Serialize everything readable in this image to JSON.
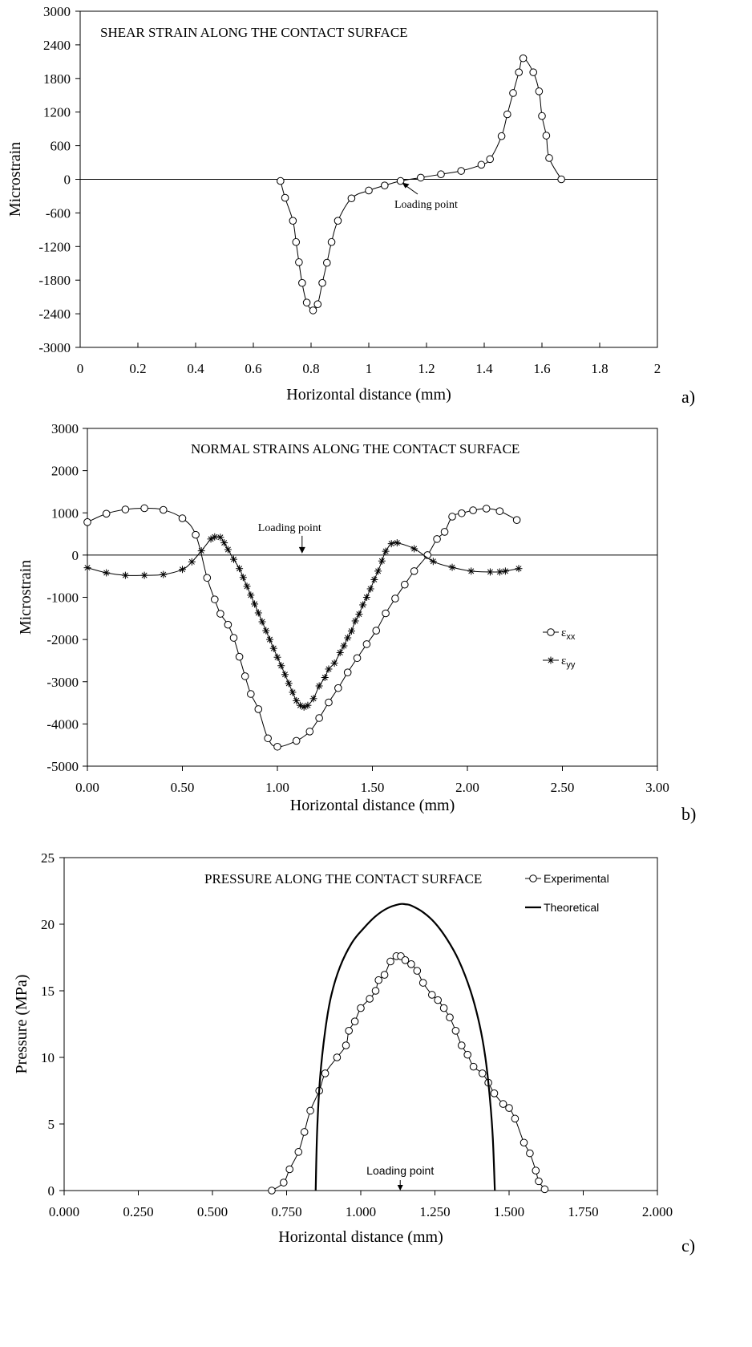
{
  "chart_data": [
    {
      "id": "a",
      "type": "line",
      "panel_label": "a)",
      "title": "SHEAR STRAIN ALONG THE CONTACT SURFACE",
      "xlabel": "Horizontal distance (mm)",
      "ylabel": "Microstrain",
      "xlim": [
        0,
        2
      ],
      "ylim": [
        -3000,
        3000
      ],
      "xticks": [
        "0",
        "0.2",
        "0.4",
        "0.6",
        "0.8",
        "1",
        "1.2",
        "1.4",
        "1.6",
        "1.8",
        "2"
      ],
      "xtick_values": [
        0,
        0.2,
        0.4,
        0.6,
        0.8,
        1,
        1.2,
        1.4,
        1.6,
        1.8,
        2
      ],
      "yticks": [
        "3000",
        "2400",
        "1800",
        "1200",
        "600",
        "0",
        "-600",
        "-1200",
        "-1800",
        "-2400",
        "-3000"
      ],
      "ytick_values": [
        3000,
        2400,
        1800,
        1200,
        600,
        0,
        -600,
        -1200,
        -1800,
        -2400,
        -3000
      ],
      "zero_line": true,
      "grid": false,
      "annotation": {
        "text": "Loading point",
        "x": 1.11,
        "y": -30
      },
      "series": [
        {
          "marker": "circle",
          "x": [
            0.694,
            0.71,
            0.737,
            0.748,
            0.758,
            0.769,
            0.785,
            0.807,
            0.823,
            0.839,
            0.855,
            0.871,
            0.893,
            0.94,
            1.0,
            1.055,
            1.11,
            1.18,
            1.25,
            1.32,
            1.39,
            1.42,
            1.46,
            1.48,
            1.5,
            1.52,
            1.535,
            1.57,
            1.59,
            1.6,
            1.615,
            1.625,
            1.667
          ],
          "y": [
            -30,
            -330,
            -740,
            -1120,
            -1480,
            -1850,
            -2200,
            -2340,
            -2230,
            -1850,
            -1490,
            -1120,
            -740,
            -340,
            -200,
            -110,
            -30,
            30,
            90,
            150,
            260,
            360,
            770,
            1160,
            1540,
            1910,
            2160,
            1910,
            1570,
            1130,
            780,
            380,
            0
          ]
        }
      ]
    },
    {
      "id": "b",
      "type": "line",
      "panel_label": "b)",
      "title": "NORMAL STRAINS ALONG THE CONTACT SURFACE",
      "xlabel": "Horizontal distance (mm)",
      "ylabel": "Microstrain",
      "xlim": [
        0,
        3
      ],
      "ylim": [
        -5000,
        3000
      ],
      "xticks": [
        "0.00",
        "0.50",
        "1.00",
        "1.50",
        "2.00",
        "2.50",
        "3.00"
      ],
      "xtick_values": [
        0,
        0.5,
        1,
        1.5,
        2,
        2.5,
        3
      ],
      "yticks": [
        "3000",
        "2000",
        "1000",
        "0",
        "-1000",
        "-2000",
        "-3000",
        "-4000",
        "-5000"
      ],
      "ytick_values": [
        3000,
        2000,
        1000,
        0,
        -1000,
        -2000,
        -3000,
        -4000,
        -5000
      ],
      "zero_line": true,
      "grid": false,
      "annotation": {
        "text": "Loading point",
        "x": 1.13,
        "y": 0
      },
      "legend": {
        "placement": "right",
        "entries": [
          {
            "label": "ε",
            "sub": "xx",
            "marker": "circle"
          },
          {
            "label": "ε",
            "sub": "yy",
            "marker": "asterisk"
          }
        ]
      },
      "series": [
        {
          "name_symbol": "ε",
          "name_sub": "xx",
          "marker": "circle",
          "x": [
            0.0,
            0.1,
            0.2,
            0.3,
            0.4,
            0.5,
            0.57,
            0.63,
            0.67,
            0.7,
            0.74,
            0.77,
            0.8,
            0.83,
            0.86,
            0.9,
            0.95,
            1.0,
            1.1,
            1.17,
            1.22,
            1.27,
            1.32,
            1.37,
            1.42,
            1.47,
            1.52,
            1.57,
            1.62,
            1.67,
            1.72,
            1.79,
            1.84,
            1.88,
            1.92,
            1.97,
            2.03,
            2.1,
            2.17,
            2.26
          ],
          "y": [
            780,
            980,
            1080,
            1110,
            1070,
            870,
            480,
            -540,
            -1050,
            -1390,
            -1650,
            -1960,
            -2410,
            -2870,
            -3290,
            -3650,
            -4340,
            -4540,
            -4400,
            -4180,
            -3860,
            -3490,
            -3150,
            -2780,
            -2440,
            -2110,
            -1790,
            -1380,
            -1030,
            -700,
            -380,
            0,
            380,
            550,
            910,
            990,
            1060,
            1100,
            1040,
            830
          ]
        },
        {
          "name_symbol": "ε",
          "name_sub": "yy",
          "marker": "asterisk",
          "x": [
            0.0,
            0.1,
            0.2,
            0.3,
            0.4,
            0.5,
            0.55,
            0.6,
            0.65,
            0.67,
            0.7,
            0.72,
            0.74,
            0.77,
            0.8,
            0.82,
            0.84,
            0.86,
            0.88,
            0.9,
            0.92,
            0.94,
            0.96,
            0.98,
            1.0,
            1.02,
            1.04,
            1.06,
            1.08,
            1.1,
            1.12,
            1.14,
            1.16,
            1.19,
            1.22,
            1.25,
            1.27,
            1.3,
            1.33,
            1.35,
            1.37,
            1.39,
            1.41,
            1.43,
            1.45,
            1.47,
            1.49,
            1.51,
            1.53,
            1.55,
            1.57,
            1.6,
            1.63,
            1.72,
            1.82,
            1.92,
            2.02,
            2.12,
            2.17,
            2.2,
            2.27
          ],
          "y": [
            -300,
            -420,
            -480,
            -480,
            -460,
            -340,
            -160,
            100,
            380,
            430,
            420,
            290,
            130,
            -100,
            -320,
            -530,
            -740,
            -950,
            -1160,
            -1370,
            -1580,
            -1790,
            -2000,
            -2210,
            -2420,
            -2620,
            -2830,
            -3040,
            -3250,
            -3450,
            -3560,
            -3600,
            -3560,
            -3400,
            -3100,
            -2900,
            -2700,
            -2560,
            -2310,
            -2150,
            -1960,
            -1800,
            -1560,
            -1400,
            -1180,
            -1000,
            -800,
            -580,
            -380,
            -140,
            90,
            270,
            290,
            150,
            -150,
            -290,
            -380,
            -400,
            -400,
            -380,
            -320
          ]
        }
      ]
    },
    {
      "id": "c",
      "type": "line",
      "panel_label": "c)",
      "title": "PRESSURE ALONG THE CONTACT SURFACE",
      "xlabel": "Horizontal distance (mm)",
      "ylabel": "Pressure (MPa)",
      "xlim": [
        0,
        2
      ],
      "ylim": [
        0,
        25
      ],
      "xticks": [
        "0.000",
        "0.250",
        "0.500",
        "0.750",
        "1.000",
        "1.250",
        "1.500",
        "1.750",
        "2.000"
      ],
      "xtick_values": [
        0,
        0.25,
        0.5,
        0.75,
        1,
        1.25,
        1.5,
        1.75,
        2
      ],
      "yticks": [
        "25",
        "20",
        "15",
        "10",
        "5",
        "0"
      ],
      "ytick_values": [
        25,
        20,
        15,
        10,
        5,
        0
      ],
      "grid": false,
      "annotation": {
        "text": "Loading point",
        "x": 1.133,
        "y": 0
      },
      "legend": {
        "placement": "top-right",
        "entries": [
          {
            "label": "Experimental",
            "marker": "circle"
          },
          {
            "label": "Theoretical",
            "marker": "line"
          }
        ]
      },
      "series": [
        {
          "name": "Experimental",
          "marker": "circle",
          "x": [
            0.7,
            0.74,
            0.76,
            0.79,
            0.81,
            0.83,
            0.86,
            0.88,
            0.92,
            0.95,
            0.96,
            0.98,
            1.0,
            1.03,
            1.05,
            1.06,
            1.08,
            1.1,
            1.12,
            1.135,
            1.15,
            1.17,
            1.19,
            1.21,
            1.24,
            1.26,
            1.28,
            1.3,
            1.32,
            1.34,
            1.36,
            1.38,
            1.41,
            1.43,
            1.45,
            1.48,
            1.5,
            1.52,
            1.55,
            1.57,
            1.59,
            1.6,
            1.62
          ],
          "y": [
            0.0,
            0.6,
            1.6,
            2.9,
            4.4,
            6.0,
            7.5,
            8.8,
            10.0,
            10.9,
            12.0,
            12.7,
            13.7,
            14.4,
            15.0,
            15.8,
            16.2,
            17.2,
            17.6,
            17.6,
            17.3,
            17.0,
            16.5,
            15.6,
            14.7,
            14.3,
            13.7,
            13.0,
            12.0,
            10.9,
            10.2,
            9.3,
            8.8,
            8.1,
            7.3,
            6.5,
            6.2,
            5.4,
            3.6,
            2.8,
            1.5,
            0.7,
            0.1
          ]
        },
        {
          "name": "Theoretical",
          "marker": "none",
          "x": [
            0.848,
            0.853,
            0.863,
            0.88,
            0.9,
            0.93,
            0.97,
            1.01,
            1.05,
            1.09,
            1.13,
            1.15,
            1.17,
            1.21,
            1.25,
            1.29,
            1.33,
            1.37,
            1.4,
            1.42,
            1.435,
            1.445,
            1.452
          ],
          "y": [
            0.0,
            4.5,
            8.5,
            12.0,
            14.6,
            16.8,
            18.6,
            19.7,
            20.6,
            21.2,
            21.5,
            21.5,
            21.4,
            20.9,
            20.1,
            18.9,
            17.3,
            15.0,
            12.5,
            10.0,
            7.0,
            4.0,
            0.0
          ]
        }
      ]
    }
  ]
}
